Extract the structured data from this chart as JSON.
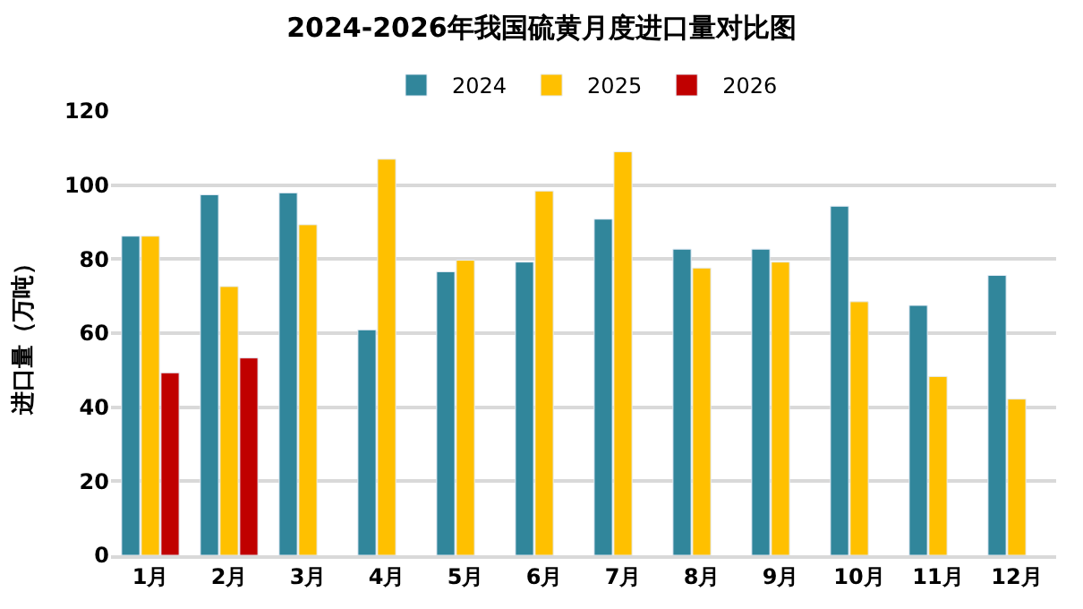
{
  "chart_data": {
    "type": "bar",
    "title": "2024-2026年我国硫黄月度进口量对比图",
    "ylabel": "进口量（万吨）",
    "categories": [
      "1月",
      "2月",
      "3月",
      "4月",
      "5月",
      "6月",
      "7月",
      "8月",
      "9月",
      "10月",
      "11月",
      "12月"
    ],
    "series": [
      {
        "name": "2024",
        "color": "#31869b",
        "values": [
          86.2,
          97.4,
          97.9,
          60.9,
          76.6,
          79.2,
          90.8,
          82.7,
          82.7,
          94.3,
          67.5,
          75.6
        ]
      },
      {
        "name": "2025",
        "color": "#ffc000",
        "values": [
          86.2,
          72.6,
          89.3,
          107.0,
          79.7,
          98.4,
          109.0,
          77.6,
          79.2,
          68.5,
          48.3,
          42.2
        ]
      },
      {
        "name": "2026",
        "color": "#c00000",
        "values": [
          49.3,
          53.3,
          null,
          null,
          null,
          null,
          null,
          null,
          null,
          null,
          null,
          null
        ]
      }
    ],
    "ylim": [
      0,
      120
    ],
    "yticks": [
      0,
      20,
      40,
      60,
      80,
      100,
      120
    ],
    "grid": "y",
    "legend": "top"
  }
}
